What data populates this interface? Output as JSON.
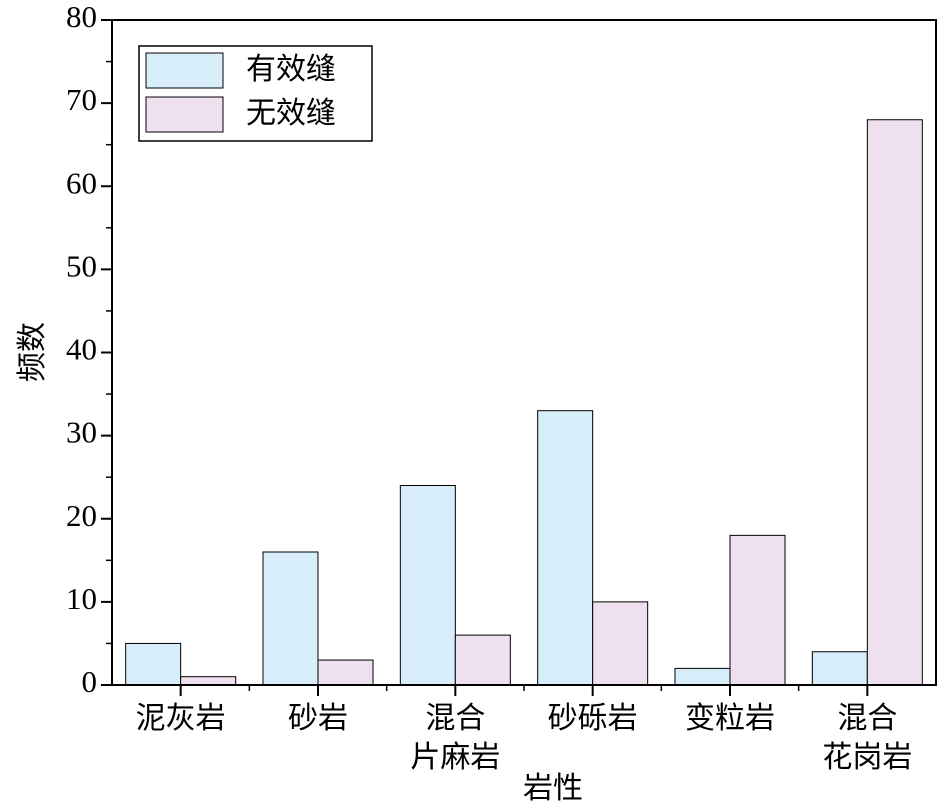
{
  "chart_data": {
    "type": "bar",
    "title": "",
    "xlabel": "岩性",
    "ylabel": "频数",
    "ylim": [
      0,
      80
    ],
    "yticks": [
      "0",
      "10",
      "20",
      "30",
      "40",
      "50",
      "60",
      "70",
      "80"
    ],
    "categories": [
      [
        "泥灰岩"
      ],
      [
        "砂岩"
      ],
      [
        "混合",
        "片麻岩"
      ],
      [
        "砂砾岩"
      ],
      [
        "变粒岩"
      ],
      [
        "混合",
        "花岗岩"
      ]
    ],
    "series": [
      {
        "name": "有效缝",
        "color": "#d7edf9",
        "values": [
          5,
          16,
          24,
          33,
          2,
          4
        ]
      },
      {
        "name": "无效缝",
        "color": "#efe0ef",
        "values": [
          1,
          3,
          6,
          10,
          18,
          68
        ]
      }
    ],
    "legend_position": "top-left",
    "grid": false
  }
}
